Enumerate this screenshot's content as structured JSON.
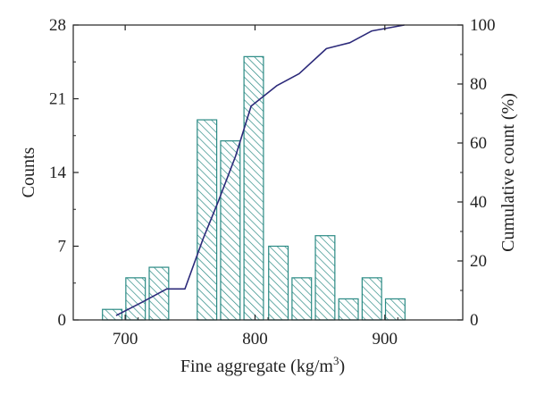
{
  "chart_data": {
    "type": "bar",
    "title": "",
    "xlabel": "Fine aggregate (kg/m",
    "xlabel_sup": "3",
    "xlabel_close": ")",
    "ylabel": "Counts",
    "y2label": "Cumulative count (%)",
    "xlim": [
      660,
      960
    ],
    "ylim": [
      0,
      28
    ],
    "y2lim": [
      0,
      100
    ],
    "xticks": [
      700,
      800,
      900
    ],
    "yticks": [
      0,
      7,
      14,
      21,
      28
    ],
    "y2ticks": [
      0,
      20,
      40,
      60,
      80,
      100
    ],
    "bar_width": 15,
    "bars": [
      {
        "x": 690,
        "value": 1
      },
      {
        "x": 708,
        "value": 4
      },
      {
        "x": 726,
        "value": 5
      },
      {
        "x": 763,
        "value": 19
      },
      {
        "x": 781,
        "value": 17
      },
      {
        "x": 799,
        "value": 25
      },
      {
        "x": 818,
        "value": 7
      },
      {
        "x": 836,
        "value": 4
      },
      {
        "x": 854,
        "value": 8
      },
      {
        "x": 872,
        "value": 2
      },
      {
        "x": 890,
        "value": 4
      },
      {
        "x": 908,
        "value": 2
      }
    ],
    "cumulative": {
      "x": [
        693,
        713,
        732,
        746,
        760,
        772,
        785,
        797,
        817,
        834,
        855,
        873,
        890,
        915
      ],
      "values": [
        1.5,
        6.0,
        10.5,
        10.5,
        27.5,
        40.5,
        55.5,
        72.5,
        79.5,
        83.5,
        92.0,
        94.0,
        98.0,
        100.0
      ]
    },
    "bar_color": "#2a8a84",
    "line_color": "#2c2a7a",
    "grid": false,
    "legend": "none"
  }
}
